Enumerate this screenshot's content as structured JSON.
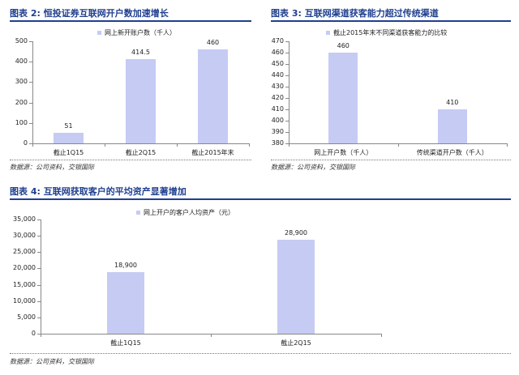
{
  "chart_data": [
    {
      "type": "bar",
      "title": "图表 2: 恒投证券互联网开户数加速增长",
      "legend": "网上新开账户数（千人）",
      "categories": [
        "截止1Q15",
        "截止2Q15",
        "截止2015年末"
      ],
      "values": [
        51,
        414.5,
        460
      ],
      "value_labels": [
        "51",
        "414.5",
        "460"
      ],
      "ylim": [
        0,
        500
      ],
      "yticks": [
        0,
        100,
        200,
        300,
        400,
        500
      ],
      "ytick_labels": [
        "0",
        "100",
        "200",
        "300",
        "400",
        "500"
      ],
      "source": "数据源：公司资料，交银国际"
    },
    {
      "type": "bar",
      "title": "图表 3: 互联网渠道获客能力超过传统渠道",
      "legend": "截止2015年末不同渠道获客能力的比较",
      "categories": [
        "网上开户数（千人）",
        "传统渠道开户数（千人）"
      ],
      "values": [
        460,
        410
      ],
      "value_labels": [
        "460",
        "410"
      ],
      "ylim": [
        380,
        470
      ],
      "yticks": [
        380,
        390,
        400,
        410,
        420,
        430,
        440,
        450,
        460,
        470
      ],
      "ytick_labels": [
        "380",
        "390",
        "400",
        "410",
        "420",
        "430",
        "440",
        "450",
        "460",
        "470"
      ],
      "source": "数据源：公司资料，交银国际"
    },
    {
      "type": "bar",
      "title": "图表 4: 互联网获取客户的平均资产显著增加",
      "legend": "网上开户的客户人均资产（元）",
      "categories": [
        "截止1Q15",
        "截止2Q15"
      ],
      "values": [
        18900,
        28900
      ],
      "value_labels": [
        "18,900",
        "28,900"
      ],
      "ylim": [
        0,
        35000
      ],
      "yticks": [
        0,
        5000,
        10000,
        15000,
        20000,
        25000,
        30000,
        35000
      ],
      "ytick_labels": [
        "0",
        "5,000",
        "10,000",
        "15,000",
        "20,000",
        "25,000",
        "30,000",
        "35,000"
      ],
      "source": "数据源：公司资料，交银国际"
    }
  ]
}
